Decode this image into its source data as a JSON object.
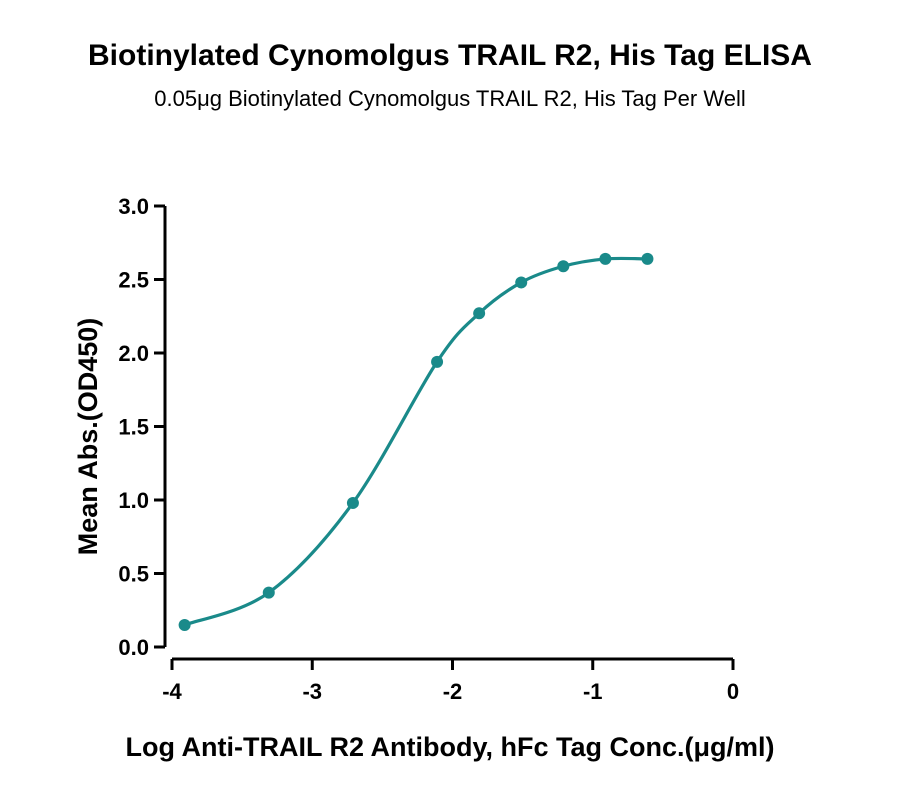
{
  "chart_data": {
    "type": "line",
    "title": "Biotinylated Cynomolgus TRAIL R2, His Tag ELISA",
    "subtitle": "0.05μg Biotinylated Cynomolgus TRAIL R2, His Tag Per Well",
    "xlabel": "Log Anti-TRAIL R2 Antibody, hFc Tag Conc.(μg/ml)",
    "ylabel": "Mean Abs.(OD450)",
    "xlim": [
      -4,
      0
    ],
    "ylim": [
      0,
      3.0
    ],
    "xticks": [
      "-4",
      "-3",
      "-2",
      "-1",
      "0"
    ],
    "yticks": [
      "0.0",
      "0.5",
      "1.0",
      "1.5",
      "2.0",
      "2.5",
      "3.0"
    ],
    "grid": false,
    "color": "#1a8a8a",
    "series": [
      {
        "x": [
          -3.91,
          -3.31,
          -2.71,
          -2.11,
          -1.81,
          -1.51,
          -1.21,
          -0.91,
          -0.61
        ],
        "y": [
          0.15,
          0.37,
          0.98,
          1.94,
          2.27,
          2.48,
          2.59,
          2.64,
          2.64
        ]
      }
    ]
  }
}
